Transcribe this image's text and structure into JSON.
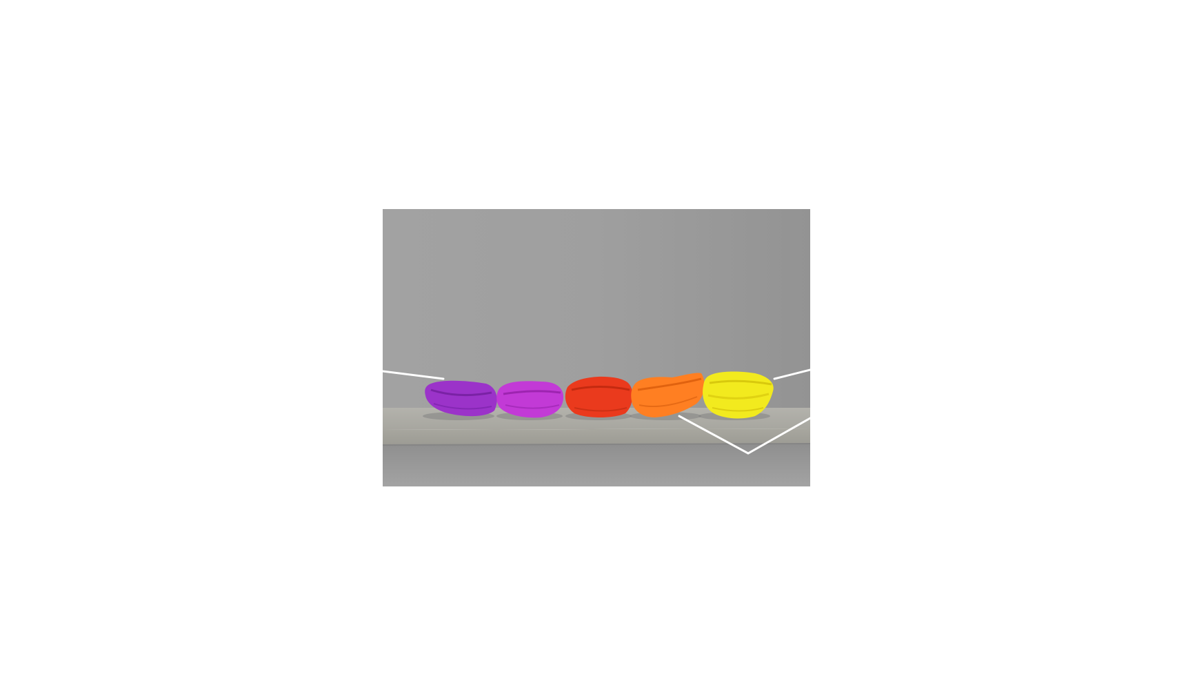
{
  "image": {
    "subject": "folded-microfiber-cloths",
    "backdrop_color": "#9c9c9c",
    "shelf_color": "#a9a8a2",
    "cloths": [
      {
        "name": "purple-cloth",
        "color": "#9b33c9"
      },
      {
        "name": "magenta-cloth",
        "color": "#c23ad6"
      },
      {
        "name": "red-cloth",
        "color": "#ea3a1d"
      },
      {
        "name": "orange-cloth",
        "color": "#ff7f22"
      },
      {
        "name": "yellow-cloth",
        "color": "#f2ea1e"
      }
    ],
    "overlay_line_color": "#ffffff"
  }
}
